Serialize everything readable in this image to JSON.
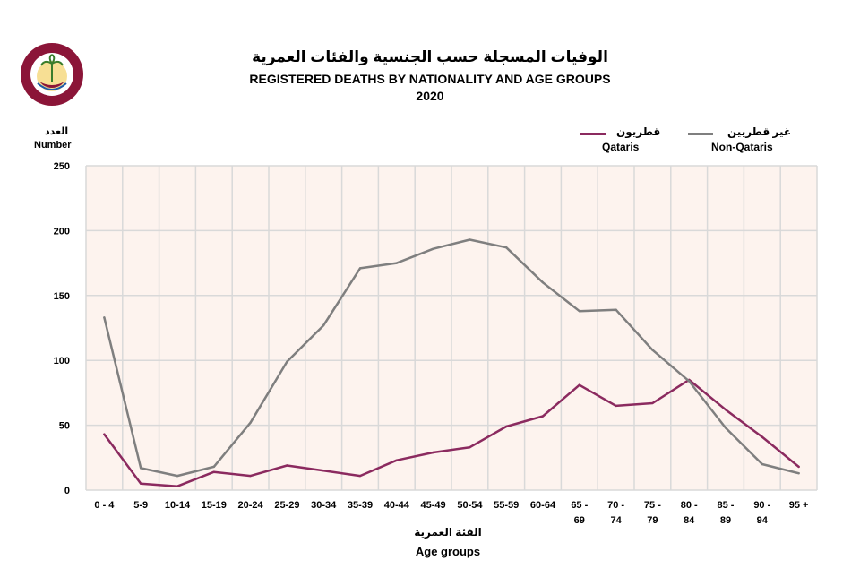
{
  "header": {
    "title_ar": "الوفيات المسجلة حسب الجنسية والفئات العمرية",
    "title_en": "REGISTERED DEATHS BY NATIONALITY AND AGE GROUPS",
    "year": "2020",
    "logo_icon": "qatar-psa-emblem-icon"
  },
  "legend": {
    "qataris_ar": "قطريون",
    "qataris_en": "Qataris",
    "non_qataris_ar": "غير قطريين",
    "non_qataris_en": "Non-Qataris"
  },
  "colors": {
    "qataris": "#8B2A5F",
    "non_qataris": "#7F7F7F",
    "plot_bg": "#FDF3EE",
    "grid": "#D9D9D9"
  },
  "chart_data": {
    "type": "line",
    "title": "REGISTERED DEATHS BY NATIONALITY AND AGE GROUPS 2020",
    "ylabel_ar": "العدد",
    "ylabel": "Number",
    "xlabel_ar": "الفئة العمرية",
    "xlabel": "Age groups",
    "ylim": [
      0,
      250
    ],
    "yticks": [
      0,
      50,
      100,
      150,
      200,
      250
    ],
    "categories": [
      [
        "0 - 4"
      ],
      [
        "5-9"
      ],
      [
        "10-14"
      ],
      [
        "15-19"
      ],
      [
        "20-24"
      ],
      [
        "25-29"
      ],
      [
        "30-34"
      ],
      [
        "35-39"
      ],
      [
        "40-44"
      ],
      [
        "45-49"
      ],
      [
        "50-54"
      ],
      [
        "55-59"
      ],
      [
        "60-64"
      ],
      [
        "65 -",
        "69"
      ],
      [
        "70 -",
        "74"
      ],
      [
        "75 -",
        "79"
      ],
      [
        "80 -",
        "84"
      ],
      [
        "85 -",
        "89"
      ],
      [
        "90 -",
        "94"
      ],
      [
        "95 +"
      ]
    ],
    "series": [
      {
        "name": "Qataris",
        "key": "qataris",
        "values": [
          43,
          5,
          3,
          14,
          11,
          19,
          15,
          11,
          23,
          29,
          33,
          49,
          57,
          81,
          65,
          67,
          85,
          62,
          41,
          18
        ]
      },
      {
        "name": "Non-Qataris",
        "key": "non_qataris",
        "values": [
          133,
          17,
          11,
          18,
          52,
          99,
          127,
          171,
          175,
          186,
          193,
          187,
          160,
          138,
          139,
          108,
          84,
          48,
          20,
          13
        ]
      }
    ],
    "grid": true,
    "legend_position": "top-right"
  }
}
